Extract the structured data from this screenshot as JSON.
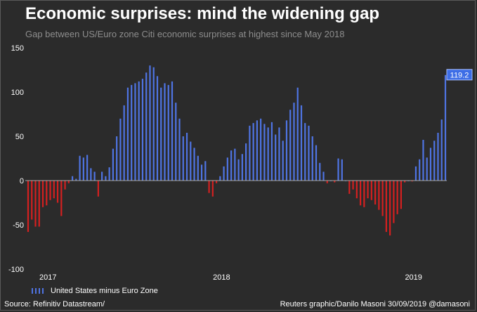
{
  "chart_data": {
    "type": "bar",
    "title": "Economic surprises: mind the widening gap",
    "subtitle": "Gap between US/Euro zone Citi economic surprises at highest since May 2018",
    "series": [
      {
        "name": "United States minus Euro Zone",
        "color": "#4f74e3",
        "negative_color": "#d42020",
        "values": [
          -58,
          -44,
          -52,
          -52,
          -30,
          -28,
          -22,
          -20,
          -25,
          -40,
          -10,
          -3,
          5,
          2,
          28,
          26,
          29,
          14,
          10,
          -18,
          10,
          5,
          15,
          36,
          50,
          70,
          85,
          105,
          108,
          110,
          112,
          115,
          122,
          130,
          128,
          118,
          105,
          110,
          108,
          112,
          88,
          70,
          50,
          54,
          44,
          37,
          28,
          18,
          22,
          -14,
          -18,
          -3,
          5,
          16,
          26,
          34,
          36,
          24,
          30,
          42,
          62,
          65,
          68,
          70,
          64,
          60,
          66,
          52,
          60,
          45,
          68,
          80,
          88,
          105,
          85,
          65,
          62,
          50,
          40,
          20,
          10,
          -3,
          0,
          -2,
          25,
          24,
          0,
          -15,
          -10,
          -20,
          -28,
          -30,
          -20,
          -22,
          -27,
          -33,
          -40,
          -58,
          -62,
          -48,
          -38,
          -32,
          -2,
          0,
          -1,
          16,
          24,
          46,
          26,
          37,
          45,
          54,
          69,
          119.2
        ]
      }
    ],
    "ylim": [
      -100,
      150
    ],
    "yticks": [
      150,
      100,
      50,
      0,
      -50,
      -100
    ],
    "xticks": [
      {
        "label": "2017",
        "index": 5
      },
      {
        "label": "2018",
        "index": 52
      },
      {
        "label": "2019",
        "index": 104
      }
    ],
    "last_value_label": "119.2",
    "xlabel": "",
    "ylabel": ""
  },
  "legend_label": "United States minus Euro Zone",
  "source": "Source: Refinitiv Datastream/",
  "credit": "Reuters graphic/Danilo Masoni 30/09/2019 @damasoni"
}
